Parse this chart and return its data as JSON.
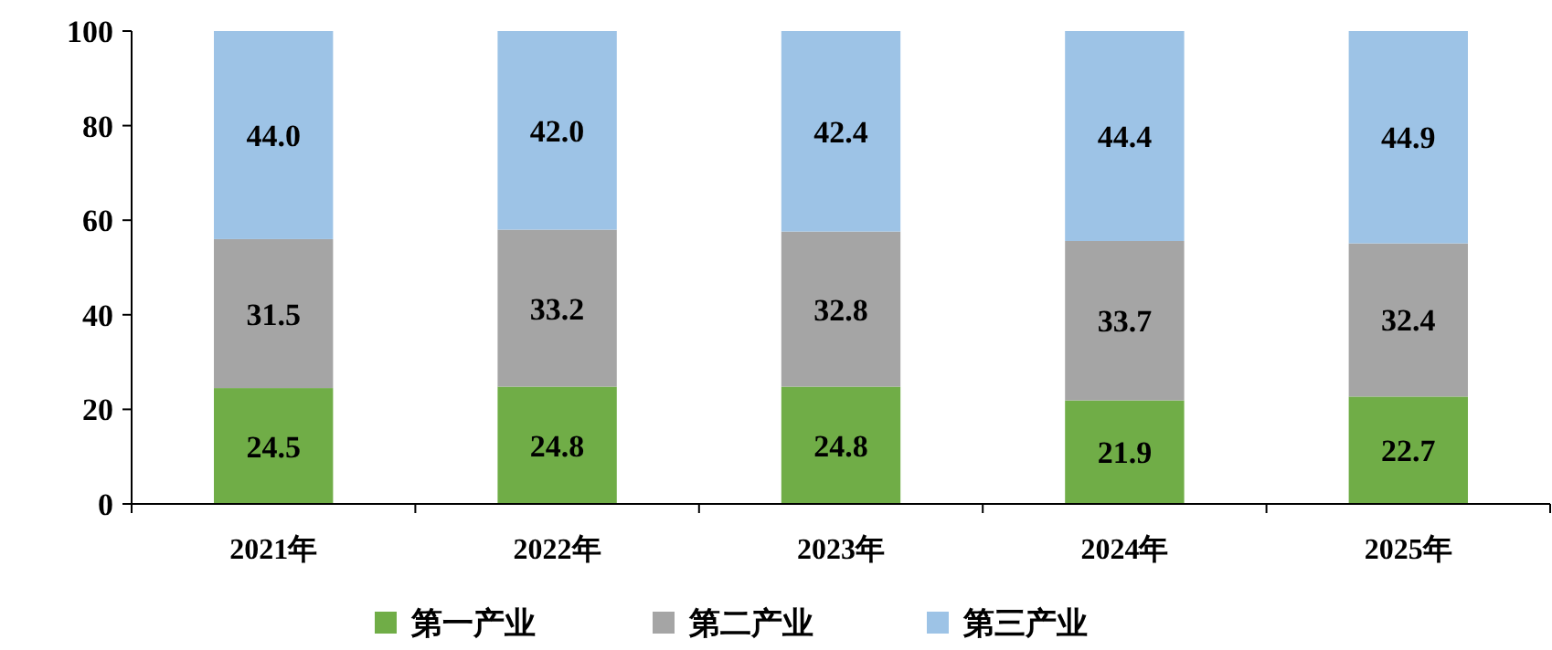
{
  "chart_data": {
    "type": "bar",
    "stacked": true,
    "categories": [
      "2021年",
      "2022年",
      "2023年",
      "2024年",
      "2025年"
    ],
    "series": [
      {
        "name": "第一产业",
        "color": "#70ad47",
        "values": [
          24.5,
          24.8,
          24.8,
          21.9,
          22.7
        ],
        "value_labels": [
          "24.5",
          "24.8",
          "24.8",
          "21.9",
          "22.7"
        ]
      },
      {
        "name": "第二产业",
        "color": "#a5a5a5",
        "values": [
          31.5,
          33.2,
          32.8,
          33.7,
          32.4
        ],
        "value_labels": [
          "31.5",
          "33.2",
          "32.8",
          "33.7",
          "32.4"
        ]
      },
      {
        "name": "第三产业",
        "color": "#9dc3e6",
        "values": [
          44.0,
          42.0,
          42.4,
          44.4,
          44.9
        ],
        "value_labels": [
          "44.0",
          "42.0",
          "42.4",
          "44.4",
          "44.9"
        ]
      }
    ],
    "ylim": [
      0,
      100
    ],
    "yticks": [
      0,
      20,
      40,
      60,
      80,
      100
    ],
    "grid": false,
    "legend": "bottom"
  }
}
